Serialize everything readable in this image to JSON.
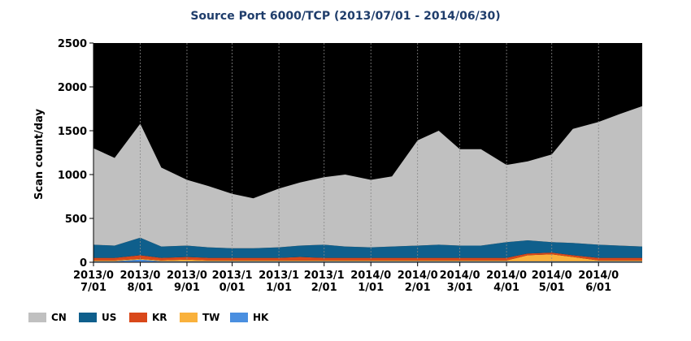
{
  "chart_data": {
    "type": "stacked_area",
    "title": "Source Port 6000/TCP (2013/07/01 - 2014/06/30)",
    "y_label": "Scan count/day",
    "x": [
      "2013/07/01",
      "2013/07/15",
      "2013/08/01",
      "2013/08/15",
      "2013/09/01",
      "2013/09/15",
      "2013/10/01",
      "2013/10/15",
      "2013/11/01",
      "2013/11/15",
      "2013/12/01",
      "2013/12/15",
      "2014/01/01",
      "2014/01/15",
      "2014/02/01",
      "2014/02/15",
      "2014/03/01",
      "2014/03/15",
      "2014/04/01",
      "2014/04/15",
      "2014/05/01",
      "2014/05/15",
      "2014/06/01",
      "2014/06/15",
      "2014/06/30"
    ],
    "xlim": [
      "2013/07/01",
      "2014/06/30"
    ],
    "xticks": [
      "2013/07/01",
      "2013/08/01",
      "2013/09/01",
      "2013/10/01",
      "2013/11/01",
      "2013/12/01",
      "2014/01/01",
      "2014/02/01",
      "2014/03/01",
      "2014/04/01",
      "2014/05/01",
      "2014/06/01"
    ],
    "ylim": [
      0,
      2500
    ],
    "yticks": [
      0,
      500,
      1000,
      1500,
      2000,
      2500
    ],
    "background": "#000000",
    "series": [
      {
        "name": "HK",
        "color": "#4a8fe0",
        "values": [
          10,
          10,
          30,
          10,
          10,
          10,
          10,
          10,
          10,
          10,
          10,
          10,
          10,
          10,
          10,
          10,
          10,
          10,
          10,
          10,
          10,
          10,
          10,
          10,
          10
        ]
      },
      {
        "name": "TW",
        "color": "#f9b13c",
        "values": [
          10,
          10,
          10,
          10,
          20,
          10,
          10,
          10,
          10,
          10,
          10,
          10,
          10,
          10,
          10,
          10,
          10,
          10,
          10,
          70,
          80,
          50,
          10,
          10,
          10
        ]
      },
      {
        "name": "KR",
        "color": "#d9481a",
        "values": [
          30,
          30,
          40,
          30,
          30,
          30,
          30,
          30,
          30,
          40,
          30,
          30,
          30,
          30,
          30,
          30,
          30,
          30,
          30,
          20,
          20,
          20,
          30,
          30,
          30
        ]
      },
      {
        "name": "US",
        "color": "#0f5f8c",
        "values": [
          150,
          140,
          200,
          130,
          130,
          120,
          110,
          110,
          120,
          130,
          150,
          130,
          120,
          130,
          140,
          150,
          140,
          140,
          180,
          150,
          120,
          140,
          150,
          140,
          130
        ]
      },
      {
        "name": "CN",
        "color": "#c0c0c0",
        "values": [
          1100,
          1000,
          1300,
          900,
          750,
          700,
          620,
          570,
          670,
          720,
          770,
          820,
          770,
          800,
          1200,
          1300,
          1100,
          1100,
          880,
          900,
          1000,
          1300,
          1400,
          1500,
          1600
        ]
      }
    ],
    "legend_order": [
      "CN",
      "US",
      "KR",
      "TW",
      "HK"
    ]
  }
}
